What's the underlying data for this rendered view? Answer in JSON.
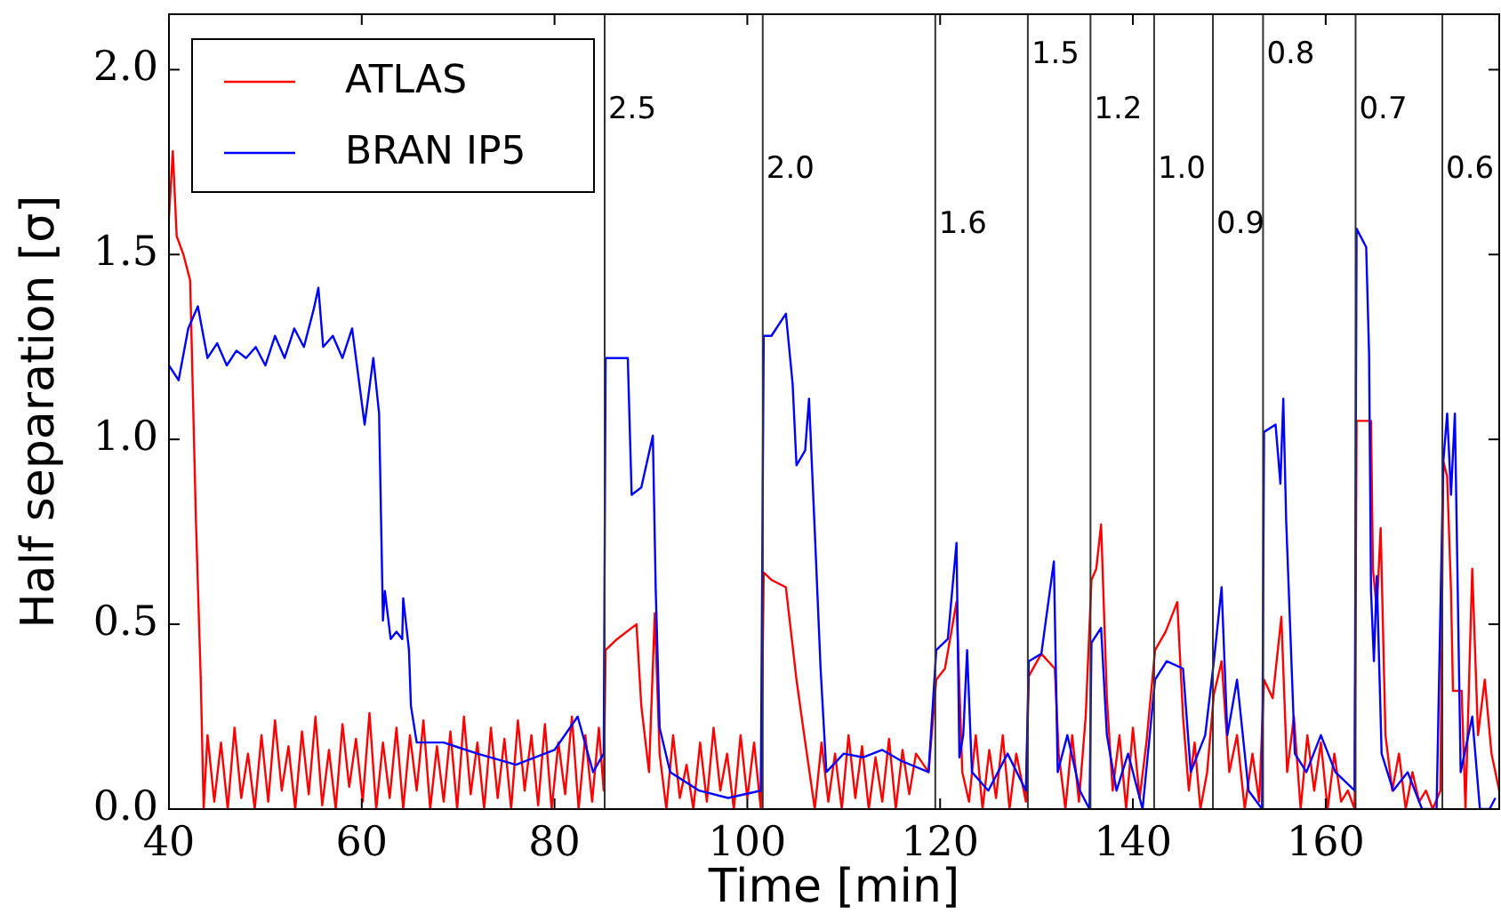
{
  "chart_data": {
    "type": "line",
    "xlabel": "Time [min]",
    "ylabel": "Half separation [σ]",
    "xlim": [
      40,
      178
    ],
    "ylim": [
      0,
      2.15
    ],
    "xticks": [
      40,
      60,
      80,
      100,
      120,
      140,
      160
    ],
    "yticks": [
      {
        "value": 0,
        "label": "0.0"
      },
      {
        "value": 0.5,
        "label": "0.5"
      },
      {
        "value": 1,
        "label": "1.0"
      },
      {
        "value": 1.5,
        "label": "1.5"
      },
      {
        "value": 2,
        "label": "2.0"
      }
    ],
    "grid": false,
    "legend": "top left",
    "line_style": "solid",
    "marker": "none",
    "series": [
      {
        "name": "ATLAS",
        "color": "#ff0000",
        "x": [
          40,
          40.4,
          40.8,
          41.5,
          42.2,
          42.8,
          43.3,
          43.6,
          44,
          44.7,
          45.4,
          46.1,
          46.8,
          47.5,
          48.2,
          48.9,
          49.6,
          50.3,
          51,
          51.7,
          52.4,
          53.1,
          53.8,
          54.5,
          55.2,
          55.9,
          56.6,
          57.3,
          58,
          58.7,
          59.4,
          60.1,
          60.8,
          61.5,
          62.2,
          62.9,
          63.6,
          64.3,
          65,
          65.7,
          66.4,
          67.1,
          67.8,
          68.5,
          69.2,
          69.9,
          70.6,
          71.3,
          72,
          72.7,
          73.4,
          74.1,
          74.8,
          75.5,
          76.2,
          76.9,
          77.6,
          78.3,
          79,
          79.7,
          80.4,
          81.1,
          81.8,
          82.5,
          83.2,
          83.9,
          84.6,
          85.1,
          85.3,
          86.5,
          88.5,
          89,
          89.8,
          90.4,
          90.9,
          91.6,
          92.3,
          93,
          93.7,
          94.4,
          95.1,
          95.8,
          96.5,
          97.2,
          97.9,
          98.6,
          99.3,
          100,
          100.7,
          101.4,
          101.7,
          102.5,
          104,
          105.1,
          105.9,
          107,
          107.7,
          108.4,
          109.1,
          109.8,
          110.5,
          111.2,
          111.9,
          112.6,
          113.3,
          114,
          114.7,
          115.4,
          116.1,
          116.8,
          117.5,
          118.8,
          119.6,
          120.5,
          121.7,
          122.3,
          123,
          123.7,
          124.4,
          125.1,
          125.8,
          126.5,
          127.2,
          127.9,
          128.9,
          129.2,
          130.5,
          131.9,
          132.3,
          133,
          133.7,
          134.4,
          135.1,
          135.7,
          136.2,
          136.7,
          137.3,
          137.9,
          138.6,
          139.3,
          140,
          140.7,
          141.4,
          142.3,
          143.4,
          144.6,
          145.2,
          145.8,
          146.4,
          147,
          147.7,
          148.4,
          149.2,
          150,
          150.8,
          151.6,
          152.4,
          153.1,
          153.6,
          154.5,
          155.4,
          156,
          156.7,
          157.4,
          158.1,
          158.8,
          159.5,
          160.2,
          160.9,
          161.6,
          162.3,
          163,
          163.2,
          164.7,
          164.9,
          165.3,
          165.7,
          166.2,
          166.9,
          167.6,
          168.3,
          169,
          169.7,
          170.4,
          171.1,
          171.9,
          172.2,
          172.6,
          173,
          173.2,
          174.1,
          174.5,
          175.2,
          175.8,
          176.5,
          177.2,
          178
        ],
        "values": [
          1.6,
          1.78,
          1.55,
          1.5,
          1.43,
          0.78,
          0.35,
          0,
          0.2,
          0.02,
          0.18,
          0,
          0.22,
          0.03,
          0.15,
          0,
          0.2,
          0.02,
          0.24,
          0.05,
          0.17,
          0,
          0.21,
          0.04,
          0.25,
          0.01,
          0.16,
          0,
          0.23,
          0.06,
          0.19,
          0.02,
          0.26,
          0,
          0.18,
          0.03,
          0.22,
          0,
          0.2,
          0.05,
          0.24,
          0,
          0.17,
          0.02,
          0.21,
          0,
          0.25,
          0.04,
          0.18,
          0,
          0.22,
          0.03,
          0.19,
          0,
          0.24,
          0.05,
          0.2,
          0.01,
          0.23,
          0,
          0.18,
          0.04,
          0.25,
          0,
          0.2,
          0.02,
          0.22,
          0.05,
          0.43,
          0.46,
          0.5,
          0.28,
          0.1,
          0.53,
          0.15,
          0,
          0.2,
          0.03,
          0.12,
          0,
          0.18,
          0.02,
          0.22,
          0.05,
          0.15,
          0,
          0.2,
          0.03,
          0.18,
          0,
          0.64,
          0.62,
          0.6,
          0.35,
          0.2,
          0,
          0.18,
          0.02,
          0.15,
          0,
          0.2,
          0.03,
          0.17,
          0,
          0.14,
          0.02,
          0.19,
          0,
          0.16,
          0.04,
          0.15,
          0.1,
          0.35,
          0.38,
          0.56,
          0.1,
          0.02,
          0.2,
          0,
          0.16,
          0.03,
          0.2,
          0,
          0.15,
          0.02,
          0.36,
          0.42,
          0.38,
          0.15,
          0,
          0.2,
          0.02,
          0.25,
          0.62,
          0.65,
          0.77,
          0.3,
          0.05,
          0.2,
          0,
          0.22,
          0.03,
          0.18,
          0.43,
          0.48,
          0.56,
          0.25,
          0.05,
          0.18,
          0,
          0.1,
          0.31,
          0.4,
          0.1,
          0.2,
          0,
          0.15,
          0.02,
          0.35,
          0.3,
          0.52,
          0.1,
          0.25,
          0,
          0.2,
          0.05,
          0.18,
          0,
          0.15,
          0.02,
          0.05,
          0,
          1.05,
          1.05,
          0.65,
          0.54,
          0.76,
          0.2,
          0.05,
          0.15,
          0,
          0.1,
          0.02,
          0.05,
          0,
          0.05,
          0.94,
          0.9,
          0.59,
          0.32,
          0.32,
          0,
          0.65,
          0.2,
          0.35,
          0.15,
          0.05
        ]
      },
      {
        "name": "BRAN IP5",
        "color": "#0000ff",
        "x": [
          40,
          41,
          42,
          43,
          44,
          45,
          46,
          47,
          48,
          49,
          50,
          51,
          52,
          53,
          54,
          55,
          55.5,
          56,
          57,
          58,
          59,
          60.3,
          61.2,
          61.8,
          62.2,
          62.4,
          63,
          63.6,
          64.2,
          64.3,
          64.9,
          65.1,
          65.7,
          68.5,
          72,
          76,
          80,
          82.4,
          84,
          85.1,
          85.3,
          86.5,
          87.6,
          88,
          89,
          90.2,
          90.5,
          90.9,
          92,
          95,
          98,
          101.4,
          101.7,
          102.5,
          104,
          104.7,
          105.1,
          106,
          106.4,
          107,
          107.6,
          108.2,
          110,
          112,
          114,
          116,
          118.8,
          119.6,
          120.8,
          121.7,
          122,
          122.4,
          122.8,
          123.3,
          125,
          127,
          128.9,
          129.2,
          130.5,
          131.8,
          132.2,
          133.2,
          134.5,
          135.5,
          135.7,
          136.7,
          137.3,
          138.3,
          139.5,
          141,
          142.3,
          143.5,
          145.2,
          146,
          147.5,
          148.4,
          149.2,
          149.8,
          150.8,
          152,
          153.4,
          153.6,
          154.8,
          155.3,
          155.6,
          155.9,
          156.8,
          158,
          159.5,
          161,
          163,
          163.2,
          164.2,
          164.5,
          164.7,
          165,
          165.3,
          165.8,
          167,
          168.5,
          170,
          171.5,
          172.2,
          172.6,
          173,
          173.4,
          174,
          175.2,
          176,
          177,
          177.6
        ],
        "values": [
          1.2,
          1.16,
          1.3,
          1.36,
          1.22,
          1.26,
          1.2,
          1.24,
          1.22,
          1.25,
          1.2,
          1.28,
          1.22,
          1.3,
          1.25,
          1.35,
          1.41,
          1.25,
          1.28,
          1.22,
          1.3,
          1.04,
          1.22,
          1.07,
          0.51,
          0.59,
          0.46,
          0.48,
          0.46,
          0.57,
          0.43,
          0.28,
          0.18,
          0.18,
          0.15,
          0.12,
          0.16,
          0.25,
          0.1,
          0.15,
          1.22,
          1.22,
          1.22,
          0.85,
          0.87,
          1.01,
          0.59,
          0.22,
          0.1,
          0.05,
          0.03,
          0.05,
          1.28,
          1.28,
          1.34,
          1.15,
          0.93,
          0.97,
          1.11,
          0.75,
          0.38,
          0.1,
          0.15,
          0.14,
          0.16,
          0.13,
          0.1,
          0.43,
          0.46,
          0.72,
          0.14,
          0.2,
          0.43,
          0.1,
          0.05,
          0.15,
          0.05,
          0.4,
          0.42,
          0.67,
          0.1,
          0.2,
          0.05,
          0,
          0.45,
          0.49,
          0.2,
          0.05,
          0.15,
          0,
          0.35,
          0.4,
          0.38,
          0.1,
          0.2,
          0.4,
          0.6,
          0.2,
          0.35,
          0.05,
          0,
          1.02,
          1.04,
          0.88,
          1.11,
          0.78,
          0.15,
          0.1,
          0.2,
          0.1,
          0.05,
          1.57,
          1.52,
          1.23,
          0.59,
          0.4,
          0.63,
          0.15,
          0.05,
          0.1,
          0,
          0,
          0.94,
          1.07,
          0.85,
          1.07,
          0.1,
          0.25,
          0,
          0,
          0.03
        ]
      }
    ],
    "ref_lines": [
      {
        "axis": "x",
        "value": 85.2
      },
      {
        "axis": "x",
        "value": 101.6
      },
      {
        "axis": "x",
        "value": 119.5
      },
      {
        "axis": "x",
        "value": 129.1
      },
      {
        "axis": "x",
        "value": 135.6
      },
      {
        "axis": "x",
        "value": 142.2
      },
      {
        "axis": "x",
        "value": 148.3
      },
      {
        "axis": "x",
        "value": 153.5
      },
      {
        "axis": "x",
        "value": 163.1
      },
      {
        "axis": "x",
        "value": 172.1
      }
    ],
    "annotations": [
      {
        "text": "2.5",
        "x": 85.2,
        "y": 1.89
      },
      {
        "text": "2.0",
        "x": 101.6,
        "y": 1.73
      },
      {
        "text": "1.6",
        "x": 119.5,
        "y": 1.58
      },
      {
        "text": "1.5",
        "x": 129.1,
        "y": 2.04
      },
      {
        "text": "1.2",
        "x": 135.6,
        "y": 1.89
      },
      {
        "text": "1.0",
        "x": 142.2,
        "y": 1.73
      },
      {
        "text": "0.9",
        "x": 148.3,
        "y": 1.58
      },
      {
        "text": "0.8",
        "x": 153.5,
        "y": 2.04
      },
      {
        "text": "0.7",
        "x": 163.1,
        "y": 1.89
      },
      {
        "text": "0.6",
        "x": 172.1,
        "y": 1.73
      }
    ]
  }
}
